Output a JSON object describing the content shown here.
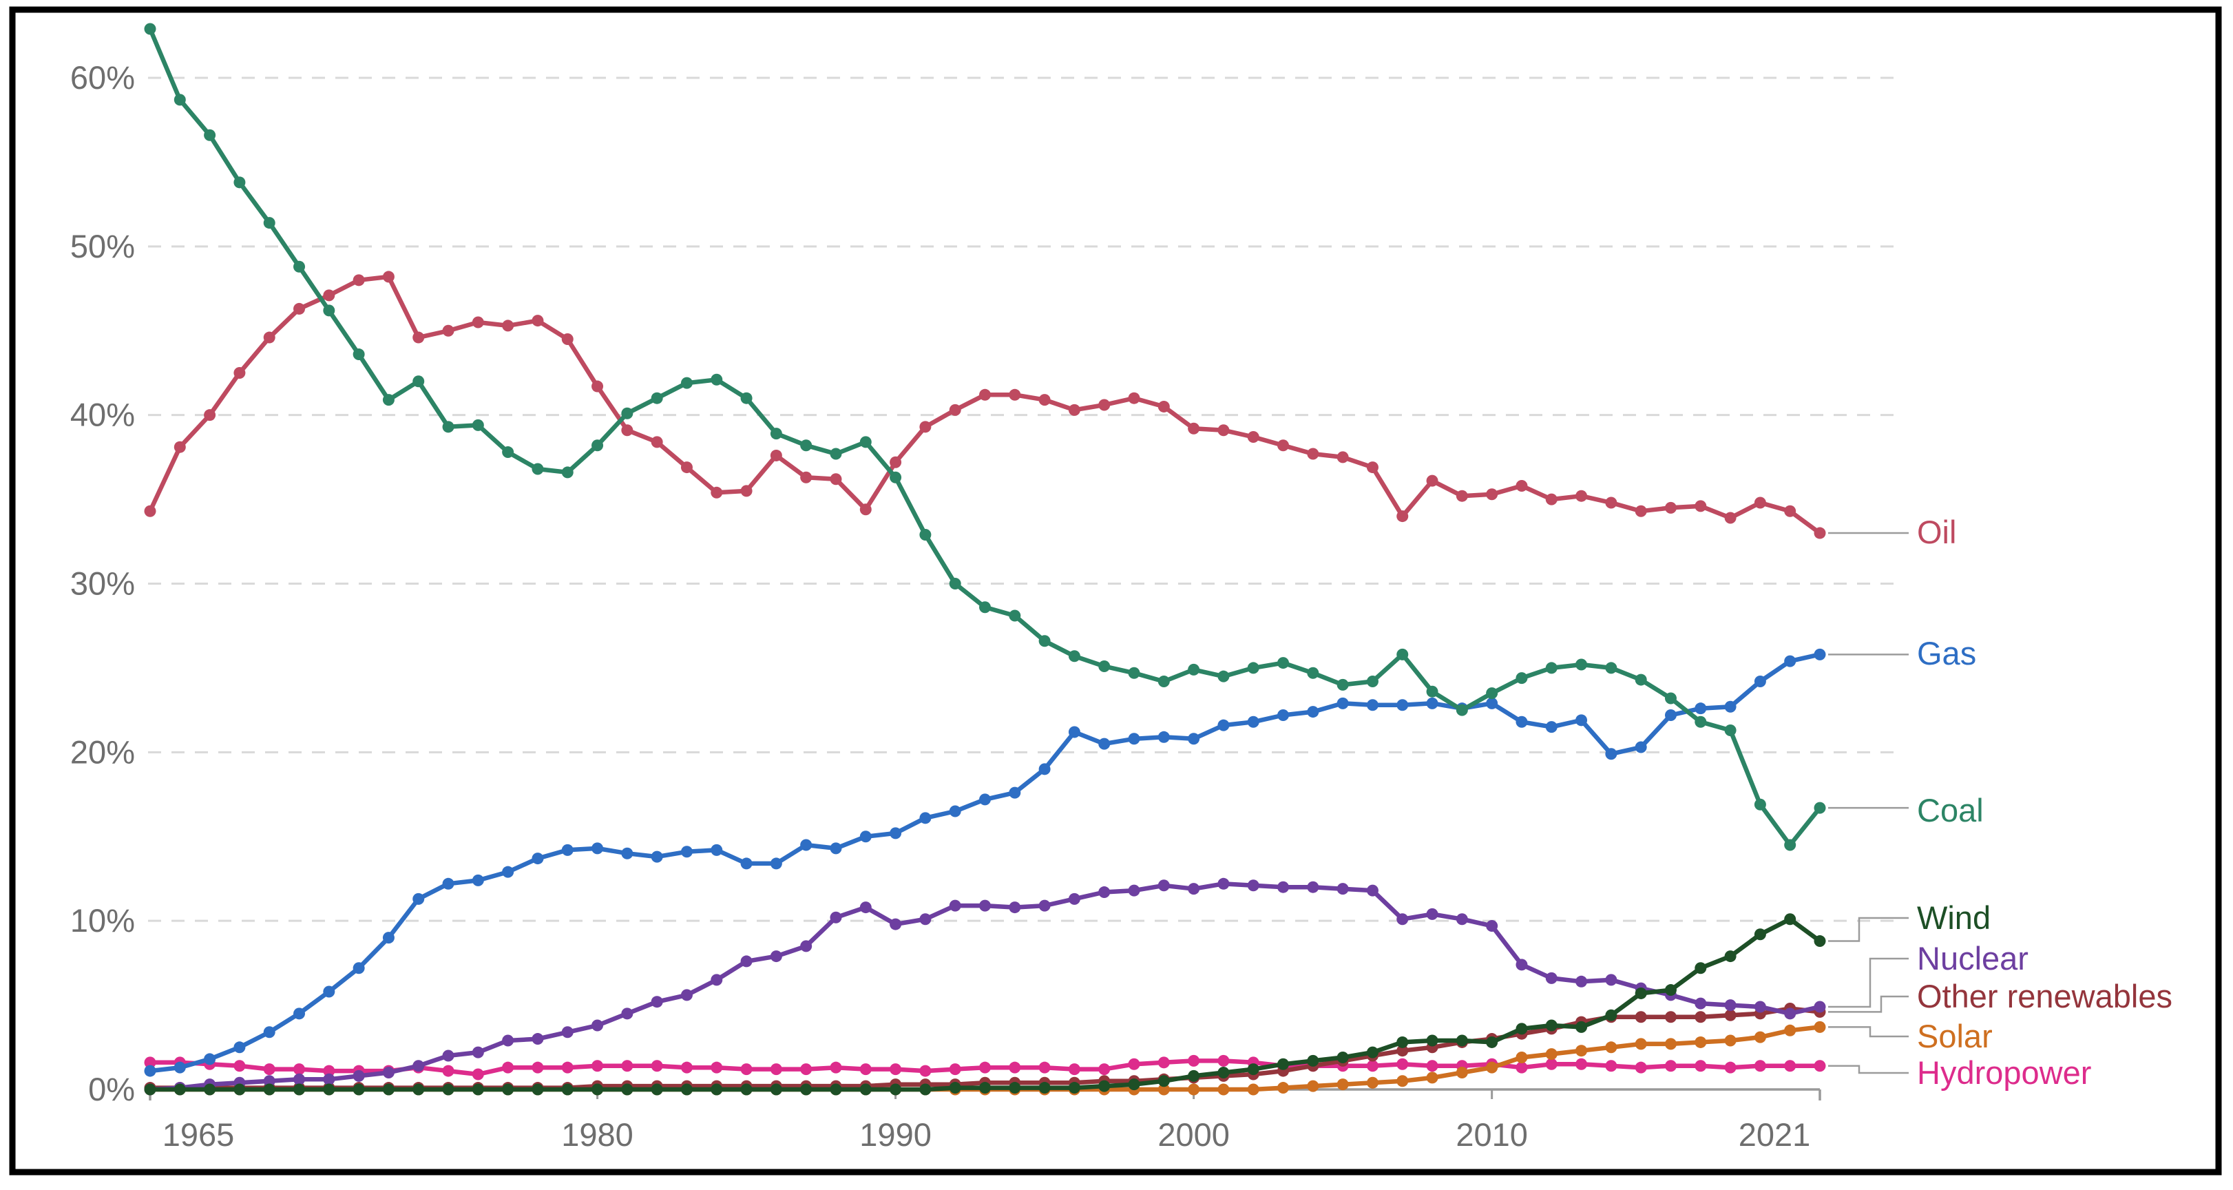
{
  "chart_data": {
    "type": "line",
    "title": "",
    "xlabel": "",
    "ylabel": "",
    "ylim": [
      0,
      63
    ],
    "grid": "horizontal-dashed",
    "legend_position": "right-edge-direct-labels",
    "y_tick_labels": [
      "0%",
      "10%",
      "20%",
      "30%",
      "40%",
      "50%",
      "60%"
    ],
    "y_tick_values": [
      0,
      10,
      20,
      30,
      40,
      50,
      60
    ],
    "x_tick_labels": [
      "1965",
      "1980",
      "1990",
      "2000",
      "2010",
      "2021"
    ],
    "x_tick_values": [
      1965,
      1980,
      1990,
      2000,
      2010,
      2021
    ],
    "years": [
      1965,
      1966,
      1967,
      1968,
      1969,
      1970,
      1971,
      1972,
      1973,
      1974,
      1975,
      1976,
      1977,
      1978,
      1979,
      1980,
      1981,
      1982,
      1983,
      1984,
      1985,
      1986,
      1987,
      1988,
      1989,
      1990,
      1991,
      1992,
      1993,
      1994,
      1995,
      1996,
      1997,
      1998,
      1999,
      2000,
      2001,
      2002,
      2003,
      2004,
      2005,
      2006,
      2007,
      2008,
      2009,
      2010,
      2011,
      2012,
      2013,
      2014,
      2015,
      2016,
      2017,
      2018,
      2019,
      2020,
      2021
    ],
    "series": [
      {
        "name": "Oil",
        "color": "#be4a60",
        "values": [
          34.3,
          38.1,
          40.0,
          42.5,
          44.6,
          46.3,
          47.1,
          48.0,
          48.2,
          44.6,
          45.0,
          45.5,
          45.3,
          45.6,
          44.5,
          41.7,
          39.1,
          38.4,
          36.9,
          35.4,
          35.5,
          37.6,
          36.3,
          36.2,
          34.4,
          37.2,
          39.3,
          40.3,
          41.2,
          41.2,
          40.9,
          40.3,
          40.6,
          41.0,
          40.5,
          39.2,
          39.1,
          38.7,
          38.2,
          37.7,
          37.5,
          36.9,
          34.0,
          36.1,
          35.2,
          35.3,
          35.8,
          35.0,
          35.2,
          34.8,
          34.3,
          34.5,
          34.6,
          33.9,
          34.8,
          34.3,
          33.0
        ]
      },
      {
        "name": "Gas",
        "color": "#2e6ec4",
        "values": [
          1.1,
          1.3,
          1.8,
          2.5,
          3.4,
          4.5,
          5.8,
          7.2,
          9.0,
          11.3,
          12.2,
          12.4,
          12.9,
          13.7,
          14.2,
          14.3,
          14.0,
          13.8,
          14.1,
          14.2,
          13.4,
          13.4,
          14.5,
          14.3,
          15.0,
          15.2,
          16.1,
          16.5,
          17.2,
          17.6,
          19.0,
          21.2,
          20.5,
          20.8,
          20.9,
          20.8,
          21.6,
          21.8,
          22.2,
          22.4,
          22.9,
          22.8,
          22.8,
          22.9,
          22.6,
          22.9,
          21.8,
          21.5,
          21.9,
          19.9,
          20.3,
          22.2,
          22.6,
          22.7,
          24.2,
          25.4,
          25.8
        ]
      },
      {
        "name": "Coal",
        "color": "#2c8465",
        "values": [
          62.9,
          58.7,
          56.6,
          53.8,
          51.4,
          48.8,
          46.2,
          43.6,
          40.9,
          42.0,
          39.3,
          39.4,
          37.8,
          36.8,
          36.6,
          38.2,
          40.1,
          41.0,
          41.9,
          42.1,
          41.0,
          38.9,
          38.2,
          37.7,
          38.4,
          36.3,
          32.9,
          30.0,
          28.6,
          28.1,
          26.6,
          25.7,
          25.1,
          24.7,
          24.2,
          24.9,
          24.5,
          25.0,
          25.3,
          24.7,
          24.0,
          24.2,
          25.8,
          23.6,
          22.5,
          23.5,
          24.4,
          25.0,
          25.2,
          25.0,
          24.3,
          23.2,
          21.8,
          21.3,
          16.9,
          14.5,
          16.7
        ]
      },
      {
        "name": "Wind",
        "color": "#1d4f26",
        "values": [
          0.0,
          0.0,
          0.0,
          0.0,
          0.0,
          0.0,
          0.0,
          0.0,
          0.0,
          0.0,
          0.0,
          0.0,
          0.0,
          0.0,
          0.0,
          0.0,
          0.0,
          0.0,
          0.0,
          0.0,
          0.0,
          0.0,
          0.0,
          0.0,
          0.0,
          0.0,
          0.0,
          0.1,
          0.1,
          0.1,
          0.1,
          0.1,
          0.2,
          0.3,
          0.5,
          0.8,
          1.0,
          1.2,
          1.5,
          1.7,
          1.9,
          2.2,
          2.8,
          2.9,
          2.9,
          2.8,
          3.6,
          3.8,
          3.7,
          4.4,
          5.7,
          5.9,
          7.2,
          7.9,
          9.2,
          10.1,
          8.8
        ]
      },
      {
        "name": "Nuclear",
        "color": "#6d3fa0",
        "values": [
          0.0,
          0.1,
          0.3,
          0.4,
          0.5,
          0.6,
          0.6,
          0.8,
          1.0,
          1.4,
          2.0,
          2.2,
          2.9,
          3.0,
          3.4,
          3.8,
          4.5,
          5.2,
          5.6,
          6.5,
          7.6,
          7.9,
          8.5,
          10.2,
          10.8,
          9.8,
          10.1,
          10.9,
          10.9,
          10.8,
          10.9,
          11.3,
          11.7,
          11.8,
          12.1,
          11.9,
          12.2,
          12.1,
          12.0,
          12.0,
          11.9,
          11.8,
          10.1,
          10.4,
          10.1,
          9.7,
          7.4,
          6.6,
          6.4,
          6.5,
          6.0,
          5.6,
          5.1,
          5.0,
          4.9,
          4.5,
          4.9
        ]
      },
      {
        "name": "Other renewables",
        "color": "#94353c",
        "values": [
          0.1,
          0.1,
          0.1,
          0.1,
          0.1,
          0.1,
          0.1,
          0.1,
          0.1,
          0.1,
          0.1,
          0.1,
          0.1,
          0.1,
          0.1,
          0.2,
          0.2,
          0.2,
          0.2,
          0.2,
          0.2,
          0.2,
          0.2,
          0.2,
          0.2,
          0.3,
          0.3,
          0.3,
          0.4,
          0.4,
          0.4,
          0.4,
          0.5,
          0.5,
          0.6,
          0.7,
          0.8,
          0.9,
          1.1,
          1.4,
          1.7,
          2.0,
          2.3,
          2.5,
          2.8,
          3.0,
          3.3,
          3.6,
          4.0,
          4.3,
          4.3,
          4.3,
          4.3,
          4.4,
          4.5,
          4.8,
          4.6
        ]
      },
      {
        "name": "Solar",
        "color": "#ce6f20",
        "values": [
          0.0,
          0.0,
          0.0,
          0.0,
          0.0,
          0.0,
          0.0,
          0.0,
          0.0,
          0.0,
          0.0,
          0.0,
          0.0,
          0.0,
          0.0,
          0.0,
          0.0,
          0.0,
          0.0,
          0.0,
          0.0,
          0.0,
          0.0,
          0.0,
          0.0,
          0.0,
          0.0,
          0.0,
          0.0,
          0.0,
          0.0,
          0.0,
          0.0,
          0.0,
          0.0,
          0.0,
          0.0,
          0.0,
          0.1,
          0.2,
          0.3,
          0.4,
          0.5,
          0.7,
          1.0,
          1.3,
          1.9,
          2.1,
          2.3,
          2.5,
          2.7,
          2.7,
          2.8,
          2.9,
          3.1,
          3.5,
          3.7
        ]
      },
      {
        "name": "Hydropower",
        "color": "#dd2c8c",
        "values": [
          1.6,
          1.6,
          1.5,
          1.4,
          1.2,
          1.2,
          1.1,
          1.1,
          1.1,
          1.3,
          1.1,
          0.9,
          1.3,
          1.3,
          1.3,
          1.4,
          1.4,
          1.4,
          1.3,
          1.3,
          1.2,
          1.2,
          1.2,
          1.3,
          1.2,
          1.2,
          1.1,
          1.2,
          1.3,
          1.3,
          1.3,
          1.2,
          1.2,
          1.5,
          1.6,
          1.7,
          1.7,
          1.6,
          1.4,
          1.4,
          1.4,
          1.4,
          1.5,
          1.4,
          1.4,
          1.5,
          1.3,
          1.5,
          1.5,
          1.4,
          1.3,
          1.4,
          1.4,
          1.3,
          1.4,
          1.4,
          1.4
        ]
      }
    ]
  },
  "colors": {
    "background": "#ffffff",
    "frame_border": "#000000",
    "gridline": "#d9d9d9",
    "axis_line": "#999999",
    "tick_label": "#6e6e6e",
    "connector": "#9b9b9b"
  }
}
